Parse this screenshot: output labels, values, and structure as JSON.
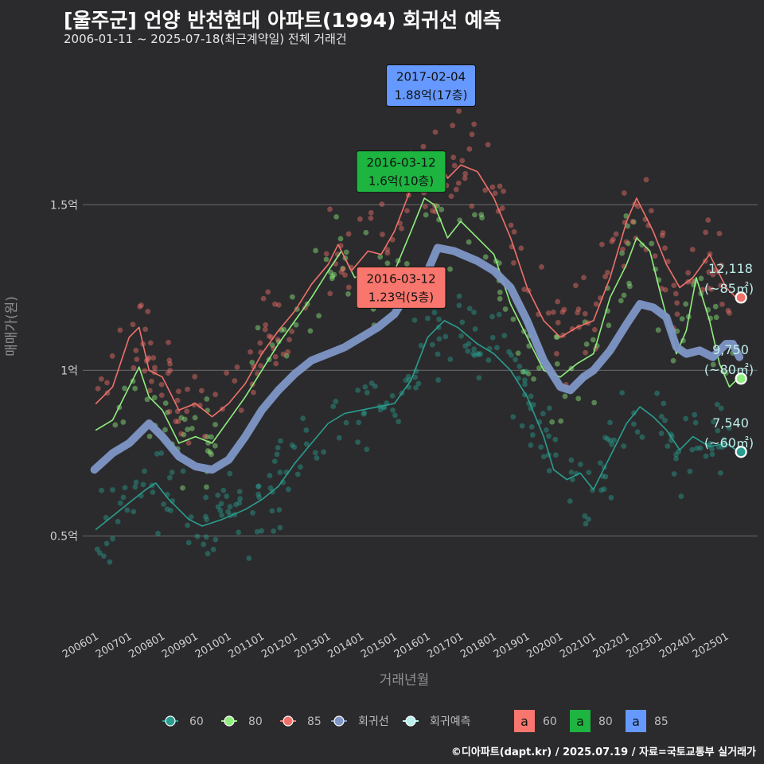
{
  "title": "[울주군] 언양 반천현대 아파트(1994) 회귀선 예측",
  "subtitle": "2006-01-11 ~ 2025-07-18(최근계약일) 전체 거래건",
  "caption": "©디아파트(dapt.kr) / 2025.07.19 / 자료=국토교통부 실거래가",
  "chart_data": {
    "type": "line",
    "xlabel": "거래년월",
    "ylabel": "매매가(원)",
    "x_ticks": [
      "200601",
      "200701",
      "200801",
      "200901",
      "201001",
      "201101",
      "201201",
      "201301",
      "201401",
      "201501",
      "201601",
      "201701",
      "201801",
      "201901",
      "202001",
      "202101",
      "202201",
      "202301",
      "202401",
      "202501"
    ],
    "y_ticks": [
      {
        "value": 0.5,
        "label": "0.5억"
      },
      {
        "value": 1.0,
        "label": "1억"
      },
      {
        "value": 1.5,
        "label": "1.5억"
      }
    ],
    "ylim": [
      0.22,
      1.95
    ],
    "xlim": [
      2005.6,
      2025.95
    ],
    "series": [
      {
        "name": "60",
        "color": "#2a9d8f",
        "points": [
          [
            2006.0,
            0.52
          ],
          [
            2006.5,
            0.56
          ],
          [
            2007.0,
            0.6
          ],
          [
            2007.5,
            0.64
          ],
          [
            2007.8,
            0.66
          ],
          [
            2008.2,
            0.61
          ],
          [
            2008.8,
            0.55
          ],
          [
            2009.2,
            0.53
          ],
          [
            2009.8,
            0.55
          ],
          [
            2010.5,
            0.58
          ],
          [
            2011.0,
            0.61
          ],
          [
            2011.5,
            0.65
          ],
          [
            2012.0,
            0.72
          ],
          [
            2012.5,
            0.78
          ],
          [
            2013.0,
            0.84
          ],
          [
            2013.5,
            0.87
          ],
          [
            2014.0,
            0.88
          ],
          [
            2014.5,
            0.89
          ],
          [
            2015.0,
            0.9
          ],
          [
            2015.5,
            0.97
          ],
          [
            2016.0,
            1.1
          ],
          [
            2016.5,
            1.15
          ],
          [
            2016.9,
            1.13
          ],
          [
            2017.5,
            1.08
          ],
          [
            2018.0,
            1.05
          ],
          [
            2018.5,
            1.0
          ],
          [
            2019.0,
            0.92
          ],
          [
            2019.5,
            0.8
          ],
          [
            2019.8,
            0.7
          ],
          [
            2020.2,
            0.67
          ],
          [
            2020.6,
            0.69
          ],
          [
            2021.0,
            0.64
          ],
          [
            2021.5,
            0.74
          ],
          [
            2022.0,
            0.84
          ],
          [
            2022.4,
            0.89
          ],
          [
            2022.8,
            0.86
          ],
          [
            2023.2,
            0.82
          ],
          [
            2023.6,
            0.76
          ],
          [
            2024.0,
            0.8
          ],
          [
            2024.5,
            0.77
          ],
          [
            2025.0,
            0.78
          ],
          [
            2025.3,
            0.76
          ]
        ]
      },
      {
        "name": "80",
        "color": "#90ee7e",
        "points": [
          [
            2006.0,
            0.82
          ],
          [
            2006.5,
            0.85
          ],
          [
            2007.0,
            0.95
          ],
          [
            2007.3,
            1.01
          ],
          [
            2007.6,
            0.92
          ],
          [
            2008.0,
            0.88
          ],
          [
            2008.5,
            0.78
          ],
          [
            2009.0,
            0.8
          ],
          [
            2009.5,
            0.78
          ],
          [
            2010.0,
            0.85
          ],
          [
            2010.5,
            0.92
          ],
          [
            2011.0,
            1.0
          ],
          [
            2011.5,
            1.08
          ],
          [
            2012.0,
            1.15
          ],
          [
            2012.5,
            1.22
          ],
          [
            2013.0,
            1.3
          ],
          [
            2013.4,
            1.36
          ],
          [
            2013.8,
            1.28
          ],
          [
            2014.2,
            1.3
          ],
          [
            2014.6,
            1.25
          ],
          [
            2015.0,
            1.3
          ],
          [
            2015.5,
            1.42
          ],
          [
            2015.9,
            1.52
          ],
          [
            2016.2,
            1.5
          ],
          [
            2016.6,
            1.4
          ],
          [
            2017.0,
            1.45
          ],
          [
            2017.5,
            1.4
          ],
          [
            2018.0,
            1.35
          ],
          [
            2018.5,
            1.2
          ],
          [
            2019.0,
            1.1
          ],
          [
            2019.5,
            1.0
          ],
          [
            2020.0,
            0.98
          ],
          [
            2020.5,
            1.02
          ],
          [
            2021.0,
            1.05
          ],
          [
            2021.5,
            1.22
          ],
          [
            2022.0,
            1.32
          ],
          [
            2022.3,
            1.4
          ],
          [
            2022.7,
            1.36
          ],
          [
            2023.0,
            1.24
          ],
          [
            2023.5,
            1.05
          ],
          [
            2023.8,
            1.12
          ],
          [
            2024.1,
            1.28
          ],
          [
            2024.5,
            1.15
          ],
          [
            2024.8,
            1.02
          ],
          [
            2025.1,
            0.95
          ],
          [
            2025.3,
            0.97
          ]
        ]
      },
      {
        "name": "85",
        "color": "#f0716a",
        "points": [
          [
            2006.0,
            0.9
          ],
          [
            2006.5,
            0.95
          ],
          [
            2007.0,
            1.1
          ],
          [
            2007.3,
            1.13
          ],
          [
            2007.6,
            1.0
          ],
          [
            2008.0,
            0.98
          ],
          [
            2008.5,
            0.88
          ],
          [
            2009.0,
            0.9
          ],
          [
            2009.5,
            0.86
          ],
          [
            2010.0,
            0.9
          ],
          [
            2010.5,
            0.96
          ],
          [
            2011.0,
            1.05
          ],
          [
            2011.5,
            1.12
          ],
          [
            2012.0,
            1.18
          ],
          [
            2012.5,
            1.26
          ],
          [
            2013.0,
            1.32
          ],
          [
            2013.3,
            1.38
          ],
          [
            2013.7,
            1.3
          ],
          [
            2014.2,
            1.36
          ],
          [
            2014.6,
            1.35
          ],
          [
            2015.0,
            1.42
          ],
          [
            2015.5,
            1.55
          ],
          [
            2016.0,
            1.58
          ],
          [
            2016.3,
            1.65
          ],
          [
            2016.6,
            1.58
          ],
          [
            2017.0,
            1.62
          ],
          [
            2017.5,
            1.6
          ],
          [
            2018.0,
            1.52
          ],
          [
            2018.5,
            1.4
          ],
          [
            2019.0,
            1.25
          ],
          [
            2019.5,
            1.15
          ],
          [
            2020.0,
            1.1
          ],
          [
            2020.5,
            1.13
          ],
          [
            2021.0,
            1.15
          ],
          [
            2021.5,
            1.28
          ],
          [
            2022.0,
            1.45
          ],
          [
            2022.3,
            1.52
          ],
          [
            2022.8,
            1.42
          ],
          [
            2023.2,
            1.32
          ],
          [
            2023.6,
            1.25
          ],
          [
            2024.0,
            1.28
          ],
          [
            2024.5,
            1.35
          ],
          [
            2025.0,
            1.25
          ],
          [
            2025.3,
            1.22
          ]
        ]
      },
      {
        "name": "회귀선",
        "color": "#7e96c6",
        "points": [
          [
            2005.95,
            0.7
          ],
          [
            2006.5,
            0.75
          ],
          [
            2007.0,
            0.78
          ],
          [
            2007.6,
            0.84
          ],
          [
            2008.0,
            0.8
          ],
          [
            2008.5,
            0.74
          ],
          [
            2009.0,
            0.71
          ],
          [
            2009.5,
            0.7
          ],
          [
            2010.0,
            0.73
          ],
          [
            2010.5,
            0.8
          ],
          [
            2011.0,
            0.88
          ],
          [
            2011.5,
            0.94
          ],
          [
            2012.0,
            0.99
          ],
          [
            2012.5,
            1.03
          ],
          [
            2013.0,
            1.05
          ],
          [
            2013.5,
            1.07
          ],
          [
            2014.0,
            1.1
          ],
          [
            2014.5,
            1.13
          ],
          [
            2015.0,
            1.17
          ],
          [
            2015.5,
            1.25
          ],
          [
            2016.0,
            1.3
          ],
          [
            2016.3,
            1.37
          ],
          [
            2016.8,
            1.36
          ],
          [
            2017.5,
            1.33
          ],
          [
            2018.0,
            1.3
          ],
          [
            2018.5,
            1.25
          ],
          [
            2019.0,
            1.15
          ],
          [
            2019.5,
            1.03
          ],
          [
            2020.0,
            0.95
          ],
          [
            2020.3,
            0.94
          ],
          [
            2020.7,
            0.98
          ],
          [
            2021.0,
            1.0
          ],
          [
            2021.5,
            1.06
          ],
          [
            2022.0,
            1.14
          ],
          [
            2022.4,
            1.2
          ],
          [
            2022.8,
            1.19
          ],
          [
            2023.2,
            1.16
          ],
          [
            2023.5,
            1.07
          ],
          [
            2023.8,
            1.05
          ],
          [
            2024.2,
            1.06
          ],
          [
            2024.6,
            1.04
          ],
          [
            2025.0,
            1.08
          ],
          [
            2025.2,
            1.08
          ],
          [
            2025.4,
            1.04
          ]
        ]
      }
    ],
    "end_labels": [
      {
        "value": "12,118",
        "area": "(~85㎡)",
        "x": 2025.45,
        "y": 1.22,
        "color": "#f0716a"
      },
      {
        "value": "9,750",
        "area": "(~80㎡)",
        "x": 2025.45,
        "y": 0.975,
        "color": "#90ee7e"
      },
      {
        "value": "7,540",
        "area": "(~60㎡)",
        "x": 2025.45,
        "y": 0.754,
        "color": "#2a9d8f"
      }
    ],
    "annotations": [
      {
        "date": "2017-02-04",
        "price": "1.88억(17층)",
        "x": 2016.1,
        "y": 1.86,
        "fill": "#6699ff"
      },
      {
        "date": "2016-03-12",
        "price": "1.6억(10층)",
        "x": 2015.2,
        "y": 1.6,
        "fill": "#1db440"
      },
      {
        "date": "2016-03-12",
        "price": "1.23억(5층)",
        "x": 2015.2,
        "y": 1.25,
        "fill": "#f8766d"
      }
    ],
    "legend": {
      "position": "bottom",
      "line_items": [
        {
          "name": "60",
          "color": "#2a9d8f"
        },
        {
          "name": "80",
          "color": "#90ee7e"
        },
        {
          "name": "85",
          "color": "#f0716a"
        },
        {
          "name": "회귀선",
          "color": "#7e96c6"
        },
        {
          "name": "회귀예측",
          "color": "#b8f0ee"
        }
      ],
      "box_items": [
        {
          "glyph": "a",
          "name": "60",
          "color": "#f8766d"
        },
        {
          "glyph": "a",
          "name": "80",
          "color": "#1db440"
        },
        {
          "glyph": "a",
          "name": "85",
          "color": "#6699ff"
        }
      ]
    }
  }
}
